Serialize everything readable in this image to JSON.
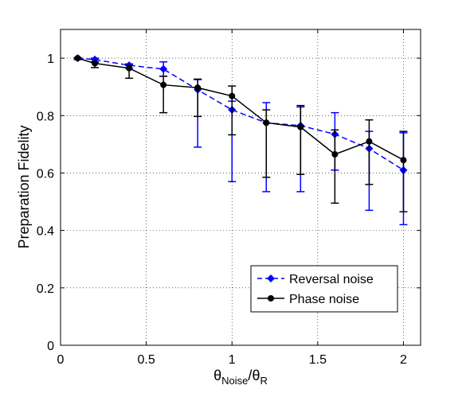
{
  "chart_data": {
    "type": "line",
    "ylabel": "Preparation Fidelity",
    "xlabel": {
      "theta_1": "θ",
      "sub_1": "Noise",
      "slash": "/",
      "theta_2": "θ",
      "sub_2": "R"
    },
    "xlim": [
      0,
      2.1
    ],
    "ylim": [
      0,
      1.1
    ],
    "xticks": [
      0,
      0.5,
      1,
      1.5,
      2
    ],
    "xtick_labels": [
      "0",
      "0.5",
      "1",
      "1.5",
      "2"
    ],
    "yticks": [
      0,
      0.2,
      0.4,
      0.6,
      0.8,
      1
    ],
    "ytick_labels": [
      "0",
      "0.2",
      "0.4",
      "0.6",
      "0.8",
      "1"
    ],
    "grid": true,
    "legend_position": "bottom-right",
    "series": [
      {
        "name": "Reversal noise",
        "color": "#0000ff",
        "line_style": "dashed",
        "marker": "diamond",
        "x": [
          0.1,
          0.2,
          0.4,
          0.6,
          0.8,
          1.0,
          1.2,
          1.4,
          1.6,
          1.8,
          2.0
        ],
        "y": [
          1.0,
          0.995,
          0.975,
          0.962,
          0.89,
          0.82,
          0.775,
          0.765,
          0.735,
          0.685,
          0.61
        ],
        "err_low": [
          0.0,
          0.01,
          0.01,
          0.025,
          0.2,
          0.25,
          0.24,
          0.23,
          0.125,
          0.215,
          0.19
        ],
        "err_high": [
          0.0,
          0.005,
          0.005,
          0.025,
          0.035,
          0.03,
          0.07,
          0.065,
          0.075,
          0.06,
          0.13
        ]
      },
      {
        "name": "Phase noise",
        "color": "#000000",
        "line_style": "solid",
        "marker": "circle",
        "x": [
          0.1,
          0.2,
          0.4,
          0.6,
          0.8,
          1.0,
          1.2,
          1.4,
          1.6,
          1.8,
          2.0
        ],
        "y": [
          1.0,
          0.982,
          0.965,
          0.907,
          0.897,
          0.868,
          0.775,
          0.76,
          0.665,
          0.71,
          0.645
        ],
        "err_low": [
          0.005,
          0.015,
          0.035,
          0.097,
          0.1,
          0.135,
          0.19,
          0.165,
          0.17,
          0.15,
          0.18
        ],
        "err_high": [
          0.002,
          0.005,
          0.01,
          0.03,
          0.03,
          0.035,
          0.045,
          0.075,
          0.085,
          0.075,
          0.1
        ]
      }
    ]
  }
}
